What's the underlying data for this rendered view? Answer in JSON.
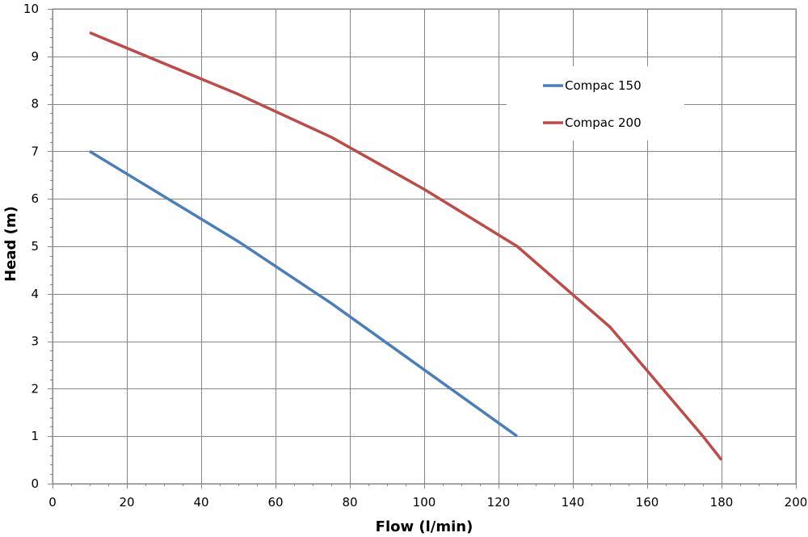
{
  "chart_data": {
    "type": "line",
    "xlabel": "Flow (l/min)",
    "ylabel": "Head (m)",
    "xlim": [
      0,
      200
    ],
    "ylim": [
      0,
      10
    ],
    "x_ticks": [
      "0",
      "20",
      "40",
      "60",
      "80",
      "100",
      "120",
      "140",
      "160",
      "180",
      "200"
    ],
    "y_ticks": [
      "0",
      "1",
      "2",
      "3",
      "4",
      "5",
      "6",
      "7",
      "8",
      "9",
      "10"
    ],
    "grid": true,
    "legend_position": "top-right",
    "series": [
      {
        "name": "Compac 150",
        "color": "#4a7ebb",
        "points": [
          [
            10,
            7.0
          ],
          [
            50,
            5.1
          ],
          [
            75,
            3.8
          ],
          [
            100,
            2.4
          ],
          [
            125,
            1.0
          ]
        ]
      },
      {
        "name": "Compac 200",
        "color": "#be4b48",
        "points": [
          [
            10,
            9.5
          ],
          [
            50,
            8.2
          ],
          [
            75,
            7.3
          ],
          [
            100,
            6.2
          ],
          [
            125,
            5.0
          ],
          [
            150,
            3.3
          ],
          [
            175,
            1.0
          ],
          [
            180,
            0.5
          ]
        ]
      }
    ]
  }
}
